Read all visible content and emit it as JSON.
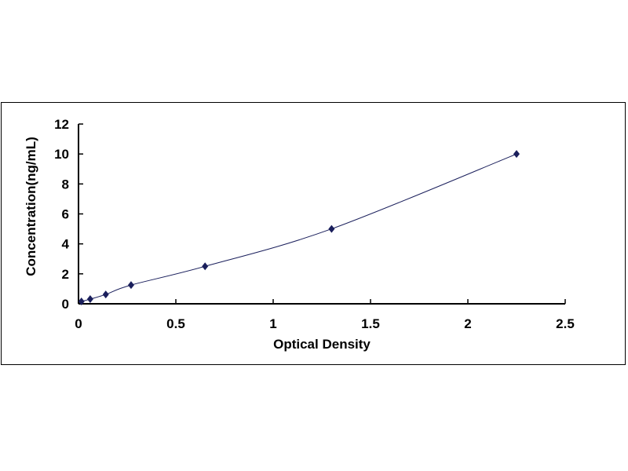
{
  "chart_data": {
    "type": "scatter",
    "title": "",
    "xlabel": "Optical Density",
    "ylabel": "Concentration(ng/mL)",
    "xlim": [
      0,
      2.5
    ],
    "ylim": [
      0,
      12
    ],
    "x_ticks": [
      "0",
      "0.5",
      "1",
      "1.5",
      "2",
      "2.5"
    ],
    "y_ticks": [
      "0",
      "2",
      "4",
      "6",
      "8",
      "10",
      "12"
    ],
    "grid": false,
    "legend": "none",
    "smooth_line": true,
    "marker": "diamond",
    "color": "#1a1f5c",
    "series": [
      {
        "x": [
          0.015,
          0.06,
          0.14,
          0.27,
          0.65,
          1.3,
          2.25
        ],
        "y": [
          0.156,
          0.312,
          0.625,
          1.25,
          2.5,
          5,
          10
        ]
      }
    ]
  }
}
